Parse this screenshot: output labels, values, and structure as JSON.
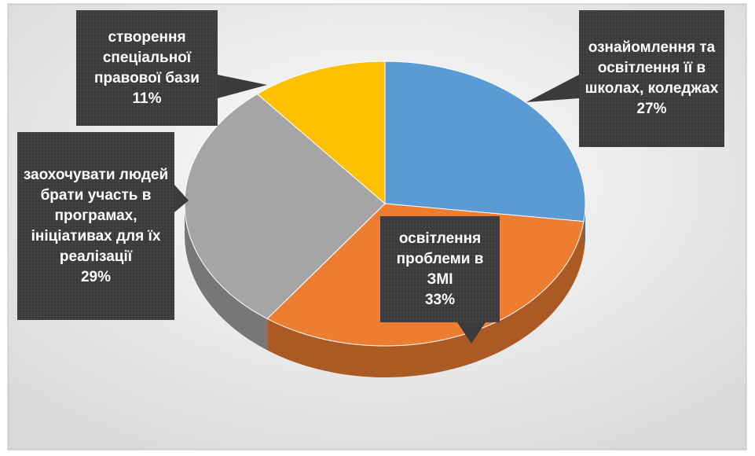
{
  "chart_data": {
    "type": "pie",
    "categories": [
      "ознайомлення та освітлення її в школах, коледжах",
      "освітлення проблеми в ЗМІ",
      "заохочувати людей брати участь в програмах, ініціативах для їх реалізації",
      "створення спеціальної правової бази"
    ],
    "values": [
      27,
      33,
      29,
      11
    ],
    "value_labels": [
      "27%",
      "33%",
      "29%",
      "11%"
    ],
    "colors": [
      "#5b9bd5",
      "#ed7d31",
      "#a5a5a5",
      "#ffc000"
    ]
  }
}
